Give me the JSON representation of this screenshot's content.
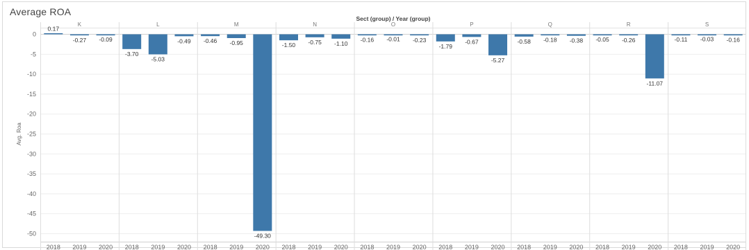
{
  "title": "Average ROA",
  "chart_data": {
    "type": "bar",
    "title": "Average ROA",
    "header": "Sect (group) / Year (group)",
    "ylabel": "Avg. Roa",
    "ylim": [
      -52,
      2
    ],
    "yticks": [
      0,
      -5,
      -10,
      -15,
      -20,
      -25,
      -30,
      -35,
      -40,
      -45,
      -50
    ],
    "years": [
      "2018",
      "2019",
      "2020"
    ],
    "bar_color": "#3e78aa",
    "grid": "horizontal",
    "panels": [
      {
        "sector": "K",
        "values": [
          0.17,
          -0.27,
          -0.09
        ],
        "labels": [
          "0.17",
          "-0.27",
          "-0.09"
        ]
      },
      {
        "sector": "L",
        "values": [
          -3.7,
          -5.03,
          -0.49
        ],
        "labels": [
          "-3.70",
          "-5.03",
          "-0.49"
        ]
      },
      {
        "sector": "M",
        "values": [
          -0.46,
          -0.95,
          -49.3
        ],
        "labels": [
          "-0.46",
          "-0.95",
          "-49.30"
        ]
      },
      {
        "sector": "N",
        "values": [
          -1.5,
          -0.75,
          -1.1
        ],
        "labels": [
          "-1.50",
          "-0.75",
          "-1.10"
        ]
      },
      {
        "sector": "O",
        "values": [
          -0.16,
          -0.01,
          -0.23
        ],
        "labels": [
          "-0.16",
          "-0.01",
          "-0.23"
        ]
      },
      {
        "sector": "P",
        "values": [
          -1.79,
          -0.67,
          -5.27
        ],
        "labels": [
          "-1.79",
          "-0.67",
          "-5.27"
        ]
      },
      {
        "sector": "Q",
        "values": [
          -0.58,
          -0.18,
          -0.38
        ],
        "labels": [
          "-0.58",
          "-0.18",
          "-0.38"
        ]
      },
      {
        "sector": "R",
        "values": [
          -0.05,
          -0.26,
          -11.07
        ],
        "labels": [
          "-0.05",
          "-0.26",
          "-11.07"
        ]
      },
      {
        "sector": "S",
        "values": [
          -0.11,
          -0.03,
          -0.16
        ],
        "labels": [
          "-0.11",
          "-0.03",
          "-0.16"
        ]
      }
    ]
  }
}
